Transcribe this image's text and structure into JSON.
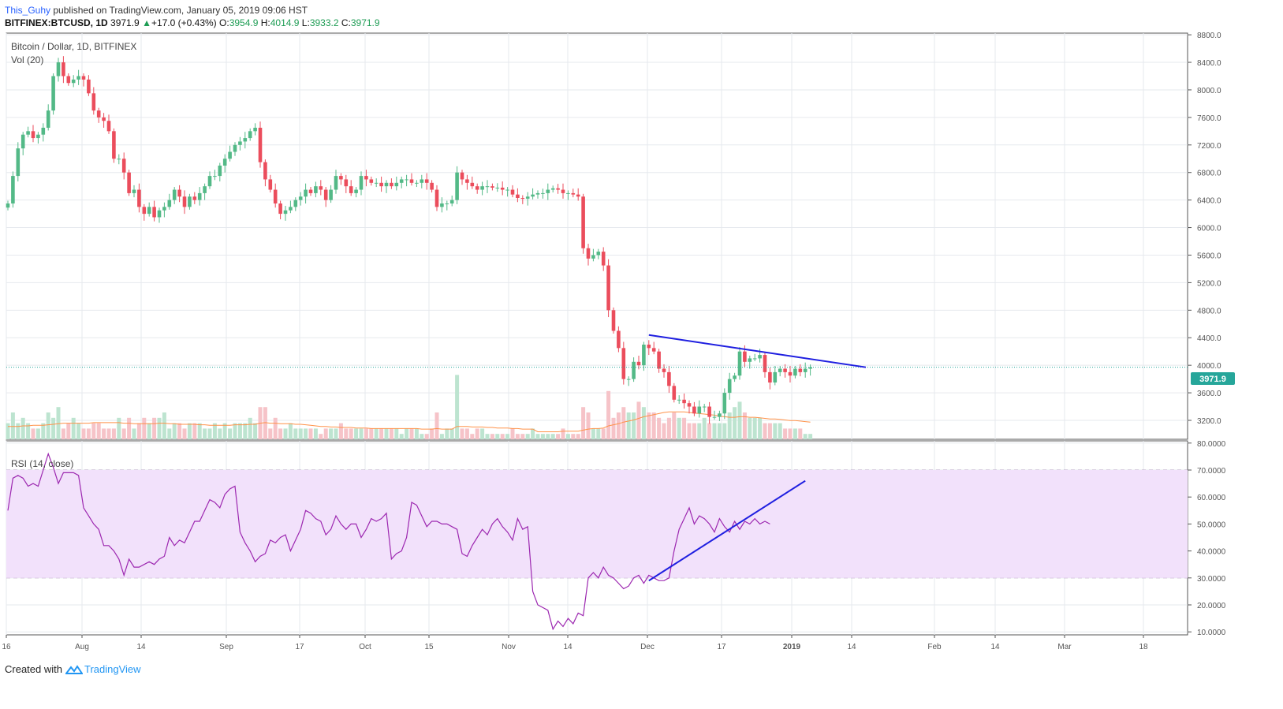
{
  "header": {
    "user": "This_Guhy",
    "published": "published on TradingView.com, January 05, 2019 09:06 HST",
    "symbol": "BITFINEX:BTCUSD, 1D",
    "last": "3971.9",
    "change_arrow": "▲",
    "change": "+17.0 (+0.43%)",
    "o_label": "O:",
    "o": "3954.9",
    "h_label": "H:",
    "h": "4014.9",
    "l_label": "L:",
    "l": "3933.2",
    "c_label": "C:",
    "c": "3971.9"
  },
  "main_pane": {
    "title": "Bitcoin / Dollar, 1D, BITFINEX",
    "volume_label": "Vol (20)",
    "price_tag": "3971.9"
  },
  "rsi_pane": {
    "title": "RSI (14, close)"
  },
  "footer": {
    "created_with": "Created with",
    "brand": "TradingView"
  },
  "colors": {
    "up": "#26a69a",
    "up_body": "#53b987",
    "down": "#eb4d5c",
    "rsi_line": "#9c27b0",
    "rsi_band": "#f2e1fb",
    "trendline": "#1f1fe0",
    "vol_ma": "#ff9249",
    "price_line": "#26a69a"
  },
  "chart_data": [
    {
      "type": "candlestick",
      "title": "Bitcoin / Dollar, 1D, BITFINEX",
      "ylim": [
        3000,
        8800
      ],
      "y_ticks": [
        "3200.0",
        "3600.0",
        "4000.0",
        "4400.0",
        "4800.0",
        "5200.0",
        "5600.0",
        "6000.0",
        "6400.0",
        "6800.0",
        "7200.0",
        "7600.0",
        "8000.0",
        "8400.0",
        "8800.0"
      ],
      "x_ticks": [
        "16",
        "Aug",
        "14",
        "Sep",
        "17",
        "Oct",
        "15",
        "Nov",
        "14",
        "Dec",
        "17",
        "2019",
        "14",
        "Feb",
        "14",
        "Mar",
        "18"
      ],
      "last_price": 3971.9,
      "series": [
        {
          "name": "close",
          "values": [
            6350,
            6750,
            7150,
            7350,
            7400,
            7300,
            7350,
            7450,
            7700,
            8200,
            8400,
            8200,
            8100,
            8150,
            8200,
            8150,
            7950,
            7700,
            7600,
            7550,
            7400,
            7000,
            7000,
            6800,
            6500,
            6550,
            6300,
            6200,
            6300,
            6150,
            6250,
            6300,
            6400,
            6550,
            6450,
            6300,
            6450,
            6400,
            6500,
            6600,
            6750,
            6750,
            6900,
            7000,
            7100,
            7200,
            7250,
            7300,
            7400,
            7450,
            6950,
            6700,
            6550,
            6350,
            6200,
            6250,
            6300,
            6400,
            6450,
            6550,
            6500,
            6600,
            6550,
            6400,
            6550,
            6750,
            6700,
            6600,
            6500,
            6550,
            6750,
            6700,
            6650,
            6650,
            6600,
            6650,
            6600,
            6650,
            6700,
            6700,
            6650,
            6650,
            6700,
            6650,
            6550,
            6300,
            6350,
            6350,
            6400,
            6800,
            6700,
            6650,
            6600,
            6550,
            6600,
            6600,
            6580,
            6580,
            6550,
            6550,
            6480,
            6430,
            6420,
            6450,
            6480,
            6500,
            6500,
            6550,
            6570,
            6550,
            6500,
            6500,
            6480,
            6450,
            5700,
            5550,
            5600,
            5650,
            5450,
            4800,
            4500,
            4250,
            3800,
            3800,
            4050,
            4000,
            4300,
            4250,
            4200,
            3950,
            3900,
            3700,
            3500,
            3500,
            3450,
            3400,
            3300,
            3400,
            3400,
            3250,
            3250,
            3300,
            3600,
            3800,
            3850,
            4200,
            4050,
            4100,
            4100,
            4150,
            3900,
            3750,
            3900,
            3950,
            3900,
            3850,
            3950,
            3900,
            3950,
            3971.9
          ]
        },
        {
          "name": "volume",
          "values": [
            3,
            5,
            3,
            4,
            3,
            2,
            2,
            3,
            5,
            4,
            6,
            2,
            3,
            4,
            3,
            2,
            2,
            3,
            3,
            2,
            2,
            2,
            4,
            2,
            4,
            2,
            3,
            4,
            3,
            4,
            4,
            5,
            2,
            3,
            3,
            2,
            3,
            3,
            3,
            2,
            2,
            3,
            2,
            3,
            2,
            3,
            3,
            3,
            4,
            3,
            6,
            6,
            2,
            4,
            2,
            2,
            3,
            2,
            2,
            2,
            2,
            2,
            1,
            2,
            2,
            2,
            3,
            2,
            2,
            2,
            2,
            2,
            2,
            2,
            2,
            2,
            2,
            2,
            1,
            2,
            2,
            2,
            1,
            1,
            2,
            5,
            1,
            2,
            2,
            12,
            2,
            2,
            1,
            2,
            2,
            1,
            1,
            1,
            1,
            1,
            2,
            1,
            1,
            1,
            2,
            1,
            1,
            1,
            1,
            1,
            2,
            1,
            1,
            1,
            6,
            5,
            2,
            2,
            2,
            9,
            4,
            5,
            6,
            5,
            5,
            7,
            6,
            5,
            5,
            4,
            3,
            4,
            5,
            4,
            4,
            3,
            3,
            3,
            4,
            3,
            3,
            3,
            3,
            5,
            6,
            7,
            5,
            4,
            4,
            4,
            3,
            3,
            3,
            3,
            2,
            2,
            2,
            2,
            1,
            1
          ]
        },
        {
          "name": "volume_ma20",
          "values": [
            2.4,
            2.4,
            2.4,
            2.5,
            2.5,
            2.6,
            2.6,
            2.6,
            2.7,
            2.8,
            2.9,
            3.0,
            3.0,
            3.0,
            3.0,
            3.0,
            3.0,
            3.1,
            3.1,
            3.1,
            3.1,
            3.1,
            3.1,
            3.0,
            3.0,
            2.9,
            2.9,
            2.9,
            2.9,
            2.9,
            3.0,
            3.0,
            2.9,
            2.9,
            2.8,
            2.8,
            2.8,
            2.8,
            2.7,
            2.7,
            2.6,
            2.6,
            2.6,
            2.6,
            2.6,
            2.7,
            2.7,
            2.7,
            2.8,
            2.8,
            3.0,
            3.1,
            3.0,
            3.0,
            2.9,
            2.9,
            2.9,
            2.8,
            2.8,
            2.7,
            2.6,
            2.5,
            2.4,
            2.4,
            2.3,
            2.3,
            2.2,
            2.2,
            2.2,
            2.1,
            2.1,
            2.1,
            2.0,
            2.0,
            2.0,
            2.0,
            2.0,
            2.0,
            2.0,
            2.0,
            2.0,
            2.0,
            1.9,
            1.9,
            1.9,
            2.0,
            1.9,
            1.9,
            1.9,
            2.4,
            2.4,
            2.4,
            2.3,
            2.3,
            2.3,
            2.2,
            2.2,
            2.1,
            2.1,
            2.1,
            2.0,
            2.0,
            1.9,
            1.9,
            1.9,
            1.4,
            1.4,
            1.4,
            1.4,
            1.4,
            1.5,
            1.5,
            1.5,
            1.5,
            1.7,
            1.9,
            2.0,
            2.0,
            2.1,
            2.5,
            2.7,
            2.9,
            3.2,
            3.4,
            3.6,
            3.9,
            4.2,
            4.4,
            4.6,
            4.8,
            5.0,
            5.1,
            5.1,
            5.1,
            5.1,
            5.0,
            4.9,
            4.8,
            4.7,
            4.6,
            4.5,
            4.3,
            4.2,
            4.1,
            4.1,
            4.2,
            4.2,
            4.1,
            4.1,
            4.0,
            3.9,
            3.8,
            3.8,
            3.7,
            3.6,
            3.5,
            3.5,
            3.4,
            3.3,
            3.2
          ]
        }
      ],
      "annotations": [
        {
          "type": "trendline",
          "from": [
            127,
            4440
          ],
          "to": [
            170,
            3971
          ]
        }
      ]
    },
    {
      "type": "line",
      "title": "RSI (14, close)",
      "ylim": [
        5,
        82
      ],
      "y_ticks": [
        "10.0000",
        "20.0000",
        "30.0000",
        "40.0000",
        "50.0000",
        "60.0000",
        "70.0000",
        "80.0000"
      ],
      "bands": [
        30,
        70
      ],
      "series": [
        {
          "name": "RSI",
          "values": [
            55,
            67,
            68,
            67,
            64,
            65,
            64,
            70,
            76,
            71,
            65,
            69,
            69,
            69,
            68,
            56,
            53,
            50,
            48,
            42,
            42,
            40,
            37,
            31,
            37,
            34,
            34,
            35,
            36,
            35,
            37,
            38,
            45,
            42,
            44,
            43,
            47,
            51,
            51,
            55,
            59,
            58,
            56,
            61,
            63,
            64,
            47,
            43,
            40,
            36,
            38,
            39,
            44,
            43,
            45,
            46,
            40,
            44,
            48,
            55,
            54,
            52,
            51,
            46,
            48,
            53,
            50,
            48,
            50,
            50,
            45,
            48,
            52,
            51,
            52,
            54,
            37,
            39,
            40,
            45,
            58,
            57,
            53,
            49,
            51,
            51,
            50,
            50,
            49,
            48,
            39,
            38,
            42,
            45,
            48,
            46,
            50,
            52,
            49,
            47,
            44,
            52,
            48,
            49,
            25,
            20,
            19,
            18,
            11,
            14,
            12,
            15,
            13,
            17,
            16,
            30,
            32,
            30,
            34,
            31,
            30,
            28,
            26,
            27,
            30,
            31,
            28,
            31,
            30,
            29,
            29,
            30,
            40,
            48,
            52,
            56,
            50,
            53,
            52,
            50,
            47,
            52,
            49,
            47,
            51,
            48,
            51,
            50,
            52,
            50,
            51,
            50
          ]
        }
      ],
      "annotations": [
        {
          "type": "trendline",
          "from": [
            127,
            29
          ],
          "to": [
            158,
            66
          ]
        }
      ]
    }
  ]
}
